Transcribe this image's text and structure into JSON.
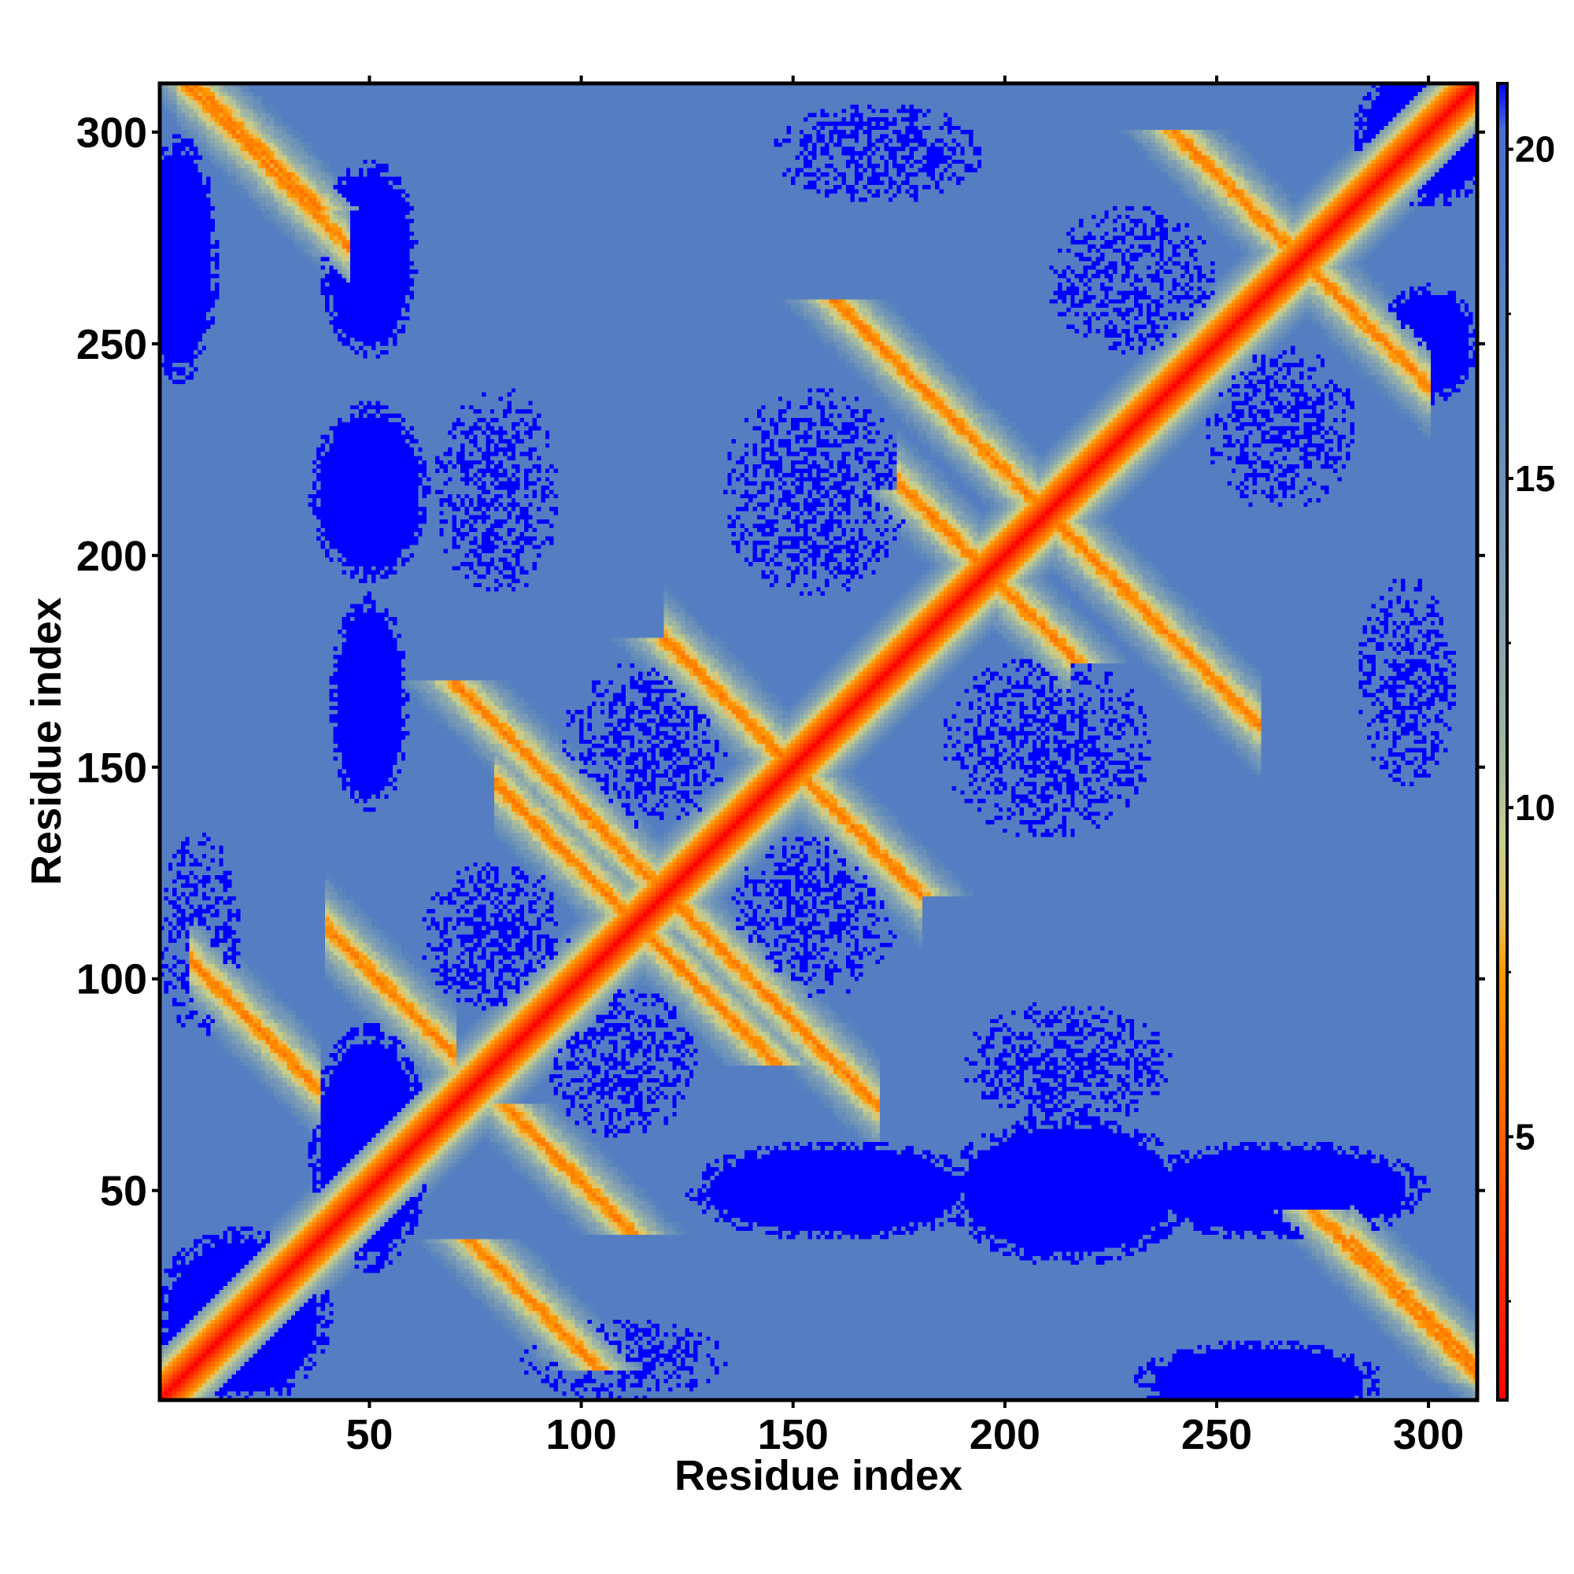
{
  "chart_data": {
    "type": "heatmap",
    "title": "",
    "xlabel": "Residue index",
    "ylabel": "Residue index",
    "xlim": [
      1,
      311
    ],
    "ylim": [
      1,
      311
    ],
    "x_ticks": [
      50,
      100,
      150,
      200,
      250,
      300
    ],
    "y_ticks": [
      50,
      100,
      150,
      200,
      250,
      300
    ],
    "x_tick_labels": [
      "50",
      "100",
      "150",
      "200",
      "250",
      "300"
    ],
    "y_tick_labels": [
      "50",
      "100",
      "150",
      "200",
      "250",
      "300"
    ],
    "colorbar": {
      "range": [
        1,
        21
      ],
      "ticks": [
        5,
        10,
        15,
        20
      ],
      "tick_labels": [
        "5",
        "10",
        "15",
        "20"
      ],
      "stops": [
        {
          "value": 1,
          "color": "#ff0000"
        },
        {
          "value": 4.5,
          "color": "#ff5500"
        },
        {
          "value": 7.5,
          "color": "#ff9900"
        },
        {
          "value": 8.3,
          "color": "#e8c060"
        },
        {
          "value": 9.5,
          "color": "#c8d08c"
        },
        {
          "value": 10.5,
          "color": "#a8bc9c"
        },
        {
          "value": 13,
          "color": "#7f9fb4"
        },
        {
          "value": 17,
          "color": "#5a85bc"
        },
        {
          "value": 20.3,
          "color": "#4a6fd0"
        },
        {
          "value": 21,
          "color": "#0000ff"
        }
      ]
    },
    "colors": {
      "background": "#5a85bc",
      "far": "#0000ff",
      "contact": "#ff0000",
      "near": "#ff9900",
      "mid": "#c8d08c"
    },
    "structure": {
      "diagonal": "distance minimum along x = y (distance 1)",
      "antiparallel_bands_x_plus_y": [
        {
          "sum": 112,
          "from": 8,
          "to": 38
        },
        {
          "sum": 152,
          "from": 40,
          "to": 70
        },
        {
          "sum": 226,
          "from": 80,
          "to": 112
        },
        {
          "sum": 240,
          "from": 110,
          "to": 170
        },
        {
          "sum": 318,
          "from": 5,
          "to": 45
        },
        {
          "sum": 320,
          "from": 282,
          "to": 312
        },
        {
          "sum": 300,
          "from": 120,
          "to": 180
        },
        {
          "sum": 392,
          "from": 175,
          "to": 215
        },
        {
          "sum": 420,
          "from": 210,
          "to": 260
        },
        {
          "sum": 540,
          "from": 255,
          "to": 300
        }
      ],
      "far_blobs": [
        {
          "x": 50,
          "y": 270,
          "rx": 10,
          "ry": 20
        },
        {
          "x": 50,
          "y": 215,
          "rx": 12,
          "ry": 18
        },
        {
          "x": 50,
          "y": 165,
          "rx": 8,
          "ry": 22
        },
        {
          "x": 50,
          "y": 60,
          "rx": 12,
          "ry": 25
        },
        {
          "x": 160,
          "y": 50,
          "rx": 30,
          "ry": 10
        },
        {
          "x": 215,
          "y": 50,
          "rx": 25,
          "ry": 15
        },
        {
          "x": 265,
          "y": 50,
          "rx": 30,
          "ry": 10
        },
        {
          "x": 20,
          "y": 20,
          "rx": 18,
          "ry": 18
        },
        {
          "x": 300,
          "y": 300,
          "rx": 15,
          "ry": 15
        },
        {
          "x": 300,
          "y": 250,
          "rx": 10,
          "ry": 12
        },
        {
          "x": 5,
          "y": 270,
          "rx": 8,
          "ry": 25
        },
        {
          "x": 260,
          "y": 5,
          "rx": 25,
          "ry": 8
        }
      ],
      "scattered_far_regions": [
        {
          "x": 115,
          "y": 155,
          "rx": 20,
          "ry": 20
        },
        {
          "x": 155,
          "y": 115,
          "rx": 20,
          "ry": 20
        },
        {
          "x": 210,
          "y": 155,
          "rx": 25,
          "ry": 22
        },
        {
          "x": 155,
          "y": 215,
          "rx": 22,
          "ry": 25
        },
        {
          "x": 215,
          "y": 80,
          "rx": 25,
          "ry": 15
        },
        {
          "x": 80,
          "y": 215,
          "rx": 15,
          "ry": 25
        },
        {
          "x": 110,
          "y": 80,
          "rx": 18,
          "ry": 18
        },
        {
          "x": 80,
          "y": 110,
          "rx": 18,
          "ry": 18
        },
        {
          "x": 230,
          "y": 265,
          "rx": 20,
          "ry": 18
        },
        {
          "x": 265,
          "y": 230,
          "rx": 18,
          "ry": 20
        },
        {
          "x": 110,
          "y": 10,
          "rx": 25,
          "ry": 10
        },
        {
          "x": 10,
          "y": 110,
          "rx": 10,
          "ry": 25
        },
        {
          "x": 170,
          "y": 295,
          "rx": 25,
          "ry": 12
        },
        {
          "x": 295,
          "y": 170,
          "rx": 12,
          "ry": 25
        }
      ]
    }
  }
}
